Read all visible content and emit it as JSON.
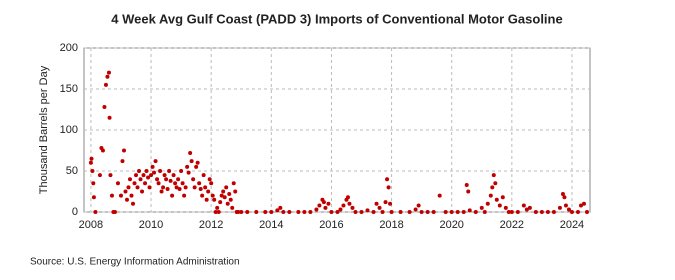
{
  "chart_data": {
    "type": "scatter",
    "title": "4 Week Avg Gulf Coast (PADD 3) Imports of Conventional Motor Gasoline",
    "y_label": "Thousand Barrels per Day",
    "source": "Source: U.S. Energy Information Administration",
    "color": "#c00000",
    "grid": true,
    "xlim": [
      2007.77,
      2024.6
    ],
    "ylim": [
      0,
      200
    ],
    "xticks": [
      2008,
      2010,
      2012,
      2014,
      2016,
      2018,
      2020,
      2022,
      2024
    ],
    "yticks": [
      0,
      50,
      100,
      150,
      200
    ],
    "x": [
      2008.0,
      2008.02,
      2008.05,
      2008.08,
      2008.1,
      2008.15,
      2008.3,
      2008.35,
      2008.4,
      2008.45,
      2008.5,
      2008.55,
      2008.6,
      2008.62,
      2008.65,
      2008.7,
      2008.75,
      2008.8,
      2008.9,
      2009.0,
      2009.05,
      2009.1,
      2009.15,
      2009.2,
      2009.25,
      2009.3,
      2009.35,
      2009.4,
      2009.45,
      2009.5,
      2009.55,
      2009.6,
      2009.65,
      2009.7,
      2009.75,
      2009.8,
      2009.85,
      2009.9,
      2009.95,
      2010.0,
      2010.05,
      2010.1,
      2010.15,
      2010.2,
      2010.25,
      2010.3,
      2010.35,
      2010.4,
      2010.45,
      2010.5,
      2010.55,
      2010.6,
      2010.65,
      2010.7,
      2010.75,
      2010.8,
      2010.85,
      2010.9,
      2010.95,
      2011.0,
      2011.05,
      2011.1,
      2011.15,
      2011.2,
      2011.25,
      2011.3,
      2011.35,
      2011.4,
      2011.45,
      2011.5,
      2011.55,
      2011.6,
      2011.65,
      2011.7,
      2011.75,
      2011.8,
      2011.85,
      2011.9,
      2011.95,
      2012.0,
      2012.05,
      2012.1,
      2012.15,
      2012.2,
      2012.25,
      2012.3,
      2012.35,
      2012.4,
      2012.45,
      2012.5,
      2012.55,
      2012.6,
      2012.65,
      2012.7,
      2012.75,
      2012.8,
      2012.85,
      2012.9,
      2013.0,
      2013.2,
      2013.5,
      2013.8,
      2014.0,
      2014.2,
      2014.3,
      2014.4,
      2014.6,
      2014.9,
      2015.1,
      2015.3,
      2015.5,
      2015.6,
      2015.7,
      2015.75,
      2015.8,
      2015.9,
      2016.0,
      2016.2,
      2016.3,
      2016.4,
      2016.5,
      2016.55,
      2016.6,
      2016.7,
      2016.8,
      2017.0,
      2017.2,
      2017.4,
      2017.5,
      2017.6,
      2017.7,
      2017.8,
      2017.85,
      2017.9,
      2017.95,
      2018.0,
      2018.3,
      2018.6,
      2018.8,
      2018.9,
      2019.0,
      2019.2,
      2019.4,
      2019.6,
      2019.8,
      2020.0,
      2020.2,
      2020.4,
      2020.5,
      2020.55,
      2020.6,
      2020.8,
      2021.0,
      2021.1,
      2021.2,
      2021.3,
      2021.35,
      2021.4,
      2021.45,
      2021.5,
      2021.6,
      2021.7,
      2021.8,
      2021.9,
      2022.0,
      2022.2,
      2022.4,
      2022.5,
      2022.6,
      2022.8,
      2023.0,
      2023.2,
      2023.4,
      2023.6,
      2023.7,
      2023.75,
      2023.8,
      2023.9,
      2024.0,
      2024.2,
      2024.3,
      2024.4,
      2024.5
    ],
    "values": [
      60,
      65,
      50,
      35,
      18,
      0,
      45,
      78,
      75,
      128,
      155,
      165,
      170,
      115,
      45,
      20,
      0,
      0,
      35,
      20,
      62,
      75,
      25,
      15,
      30,
      40,
      20,
      10,
      35,
      45,
      30,
      50,
      40,
      25,
      45,
      35,
      50,
      42,
      30,
      45,
      55,
      48,
      62,
      40,
      35,
      50,
      25,
      30,
      45,
      40,
      28,
      50,
      38,
      20,
      45,
      35,
      30,
      40,
      28,
      50,
      35,
      20,
      30,
      55,
      48,
      72,
      62,
      40,
      30,
      55,
      60,
      35,
      28,
      20,
      45,
      30,
      15,
      25,
      40,
      35,
      20,
      15,
      0,
      5,
      0,
      12,
      20,
      25,
      18,
      30,
      10,
      22,
      15,
      5,
      35,
      25,
      0,
      0,
      0,
      0,
      0,
      0,
      0,
      2,
      5,
      0,
      0,
      0,
      0,
      0,
      3,
      8,
      15,
      12,
      5,
      10,
      0,
      0,
      3,
      8,
      15,
      18,
      10,
      5,
      0,
      0,
      2,
      0,
      10,
      5,
      0,
      12,
      40,
      30,
      10,
      0,
      0,
      0,
      3,
      8,
      0,
      0,
      0,
      20,
      0,
      0,
      0,
      0,
      33,
      25,
      2,
      0,
      5,
      0,
      10,
      20,
      30,
      45,
      35,
      15,
      8,
      18,
      5,
      0,
      0,
      0,
      8,
      3,
      5,
      0,
      0,
      0,
      0,
      5,
      22,
      18,
      8,
      3,
      0,
      0,
      8,
      10,
      0
    ]
  }
}
